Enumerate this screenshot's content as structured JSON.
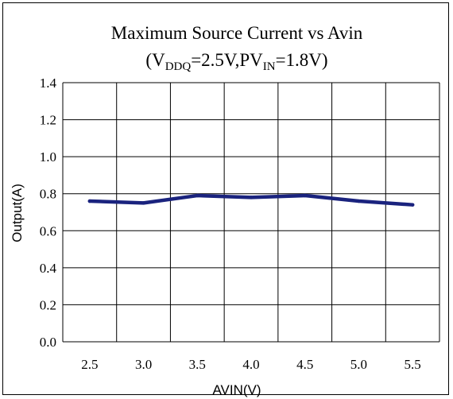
{
  "chart_data": {
    "type": "line",
    "title": "Maximum Source Current vs Avin",
    "subtitle": {
      "open_paren": "(V",
      "sub1": "DDQ",
      "mid": "=2.5V,PV",
      "sub2": "IN",
      "end": "=1.8V)"
    },
    "xlabel": "AVIN(V)",
    "ylabel": "Output(A)",
    "x": [
      2.5,
      3.0,
      3.5,
      4.0,
      4.5,
      5.0,
      5.5
    ],
    "x_tick_labels": [
      "2.5",
      "3.0",
      "3.5",
      "4.0",
      "4.5",
      "5.0",
      "5.5"
    ],
    "y_tick_labels": [
      "0.0",
      "0.2",
      "0.4",
      "0.6",
      "0.8",
      "1.0",
      "1.2",
      "1.4"
    ],
    "ylim": [
      0,
      1.4
    ],
    "xlim": [
      2.25,
      5.75
    ],
    "series": [
      {
        "values": [
          0.76,
          0.75,
          0.79,
          0.78,
          0.79,
          0.76,
          0.74
        ],
        "color": "#1a237e"
      }
    ],
    "grid": true,
    "legend": "none"
  }
}
